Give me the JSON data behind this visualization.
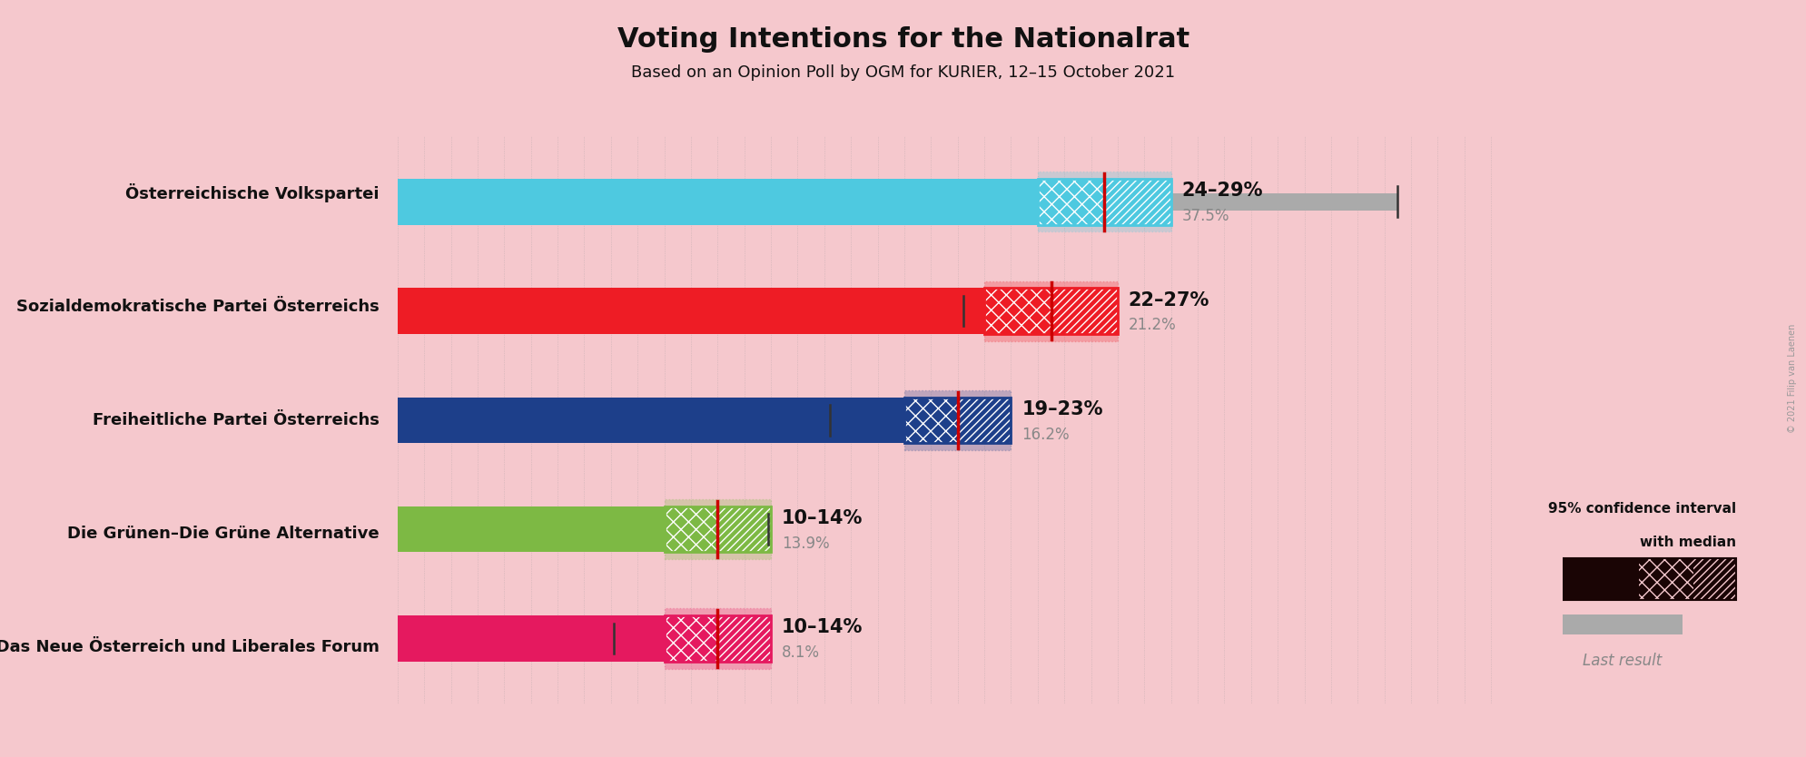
{
  "title": "Voting Intentions for the Nationalrat",
  "subtitle": "Based on an Opinion Poll by OGM for KURIER, 12–15 October 2021",
  "copyright": "© 2021 Filip van Laenen",
  "background_color": "#f5c8cd",
  "parties": [
    {
      "name": "Österreichische Volkspartei",
      "color": "#4ec9e0",
      "ci_low": 24,
      "ci_high": 29,
      "median": 26.5,
      "last_result": 37.5,
      "label": "24–29%",
      "last_label": "37.5%"
    },
    {
      "name": "Sozialdemokratische Partei Österreichs",
      "color": "#ee1c25",
      "ci_low": 22,
      "ci_high": 27,
      "median": 24.5,
      "last_result": 21.2,
      "label": "22–27%",
      "last_label": "21.2%"
    },
    {
      "name": "Freiheitliche Partei Österreichs",
      "color": "#1d3f8a",
      "ci_low": 19,
      "ci_high": 23,
      "median": 21,
      "last_result": 16.2,
      "label": "19–23%",
      "last_label": "16.2%"
    },
    {
      "name": "Die Grünen–Die Grüne Alternative",
      "color": "#7db944",
      "ci_low": 10,
      "ci_high": 14,
      "median": 12,
      "last_result": 13.9,
      "label": "10–14%",
      "last_label": "13.9%"
    },
    {
      "name": "NEOS–Das Neue Österreich und Liberales Forum",
      "color": "#e5195f",
      "ci_low": 10,
      "ci_high": 14,
      "median": 12,
      "last_result": 8.1,
      "label": "10–14%",
      "last_label": "8.1%"
    }
  ],
  "xlim_max": 42,
  "median_line_color": "#cc0000",
  "last_result_color": "#aaaaaa",
  "legend_color": "#1a0505",
  "legend_text_line1": "95% confidence interval",
  "legend_text_line2": "with median",
  "legend_last": "Last result"
}
